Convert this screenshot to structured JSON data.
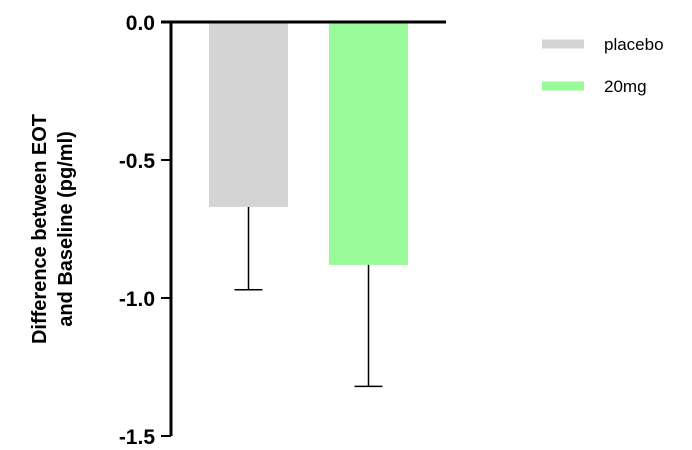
{
  "chart_data": {
    "type": "bar",
    "title": "",
    "ylabel_lines": [
      "Difference between EOT",
      "and Baseline (pg/ml)"
    ],
    "xlabel": "",
    "ylim": [
      -1.5,
      0.0
    ],
    "yticks": [
      {
        "value": 0.0,
        "label": "0.0"
      },
      {
        "value": -0.5,
        "label": "-0.5"
      },
      {
        "value": -1.0,
        "label": "-1.0"
      },
      {
        "value": -1.5,
        "label": "-1.5"
      }
    ],
    "grid": false,
    "legend_position": "top-right",
    "series": [
      {
        "name": "placebo",
        "value": -0.67,
        "error": 0.3,
        "color": "#d4d4d4"
      },
      {
        "name": "20mg",
        "value": -0.88,
        "error": 0.44,
        "color": "#99fa99"
      }
    ]
  }
}
